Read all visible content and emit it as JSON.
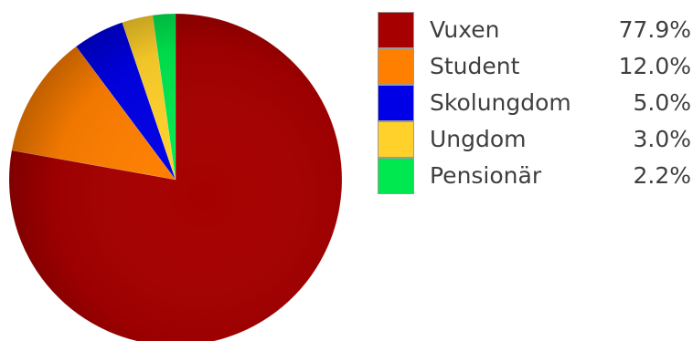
{
  "chart_data": {
    "type": "pie",
    "categories": [
      "Vuxen",
      "Student",
      "Skolungdom",
      "Ungdom",
      "Pensionär"
    ],
    "values": [
      77.9,
      12.0,
      5.0,
      3.0,
      2.2
    ],
    "value_labels": [
      "77.9%",
      "12.0%",
      "5.0%",
      "3.0%",
      "2.2%"
    ],
    "colors": [
      "#a60000",
      "#ff7f00",
      "#0000e6",
      "#ffd12a",
      "#00e84f"
    ],
    "legend_position": "right",
    "start_angle": "top",
    "direction": "clockwise"
  }
}
